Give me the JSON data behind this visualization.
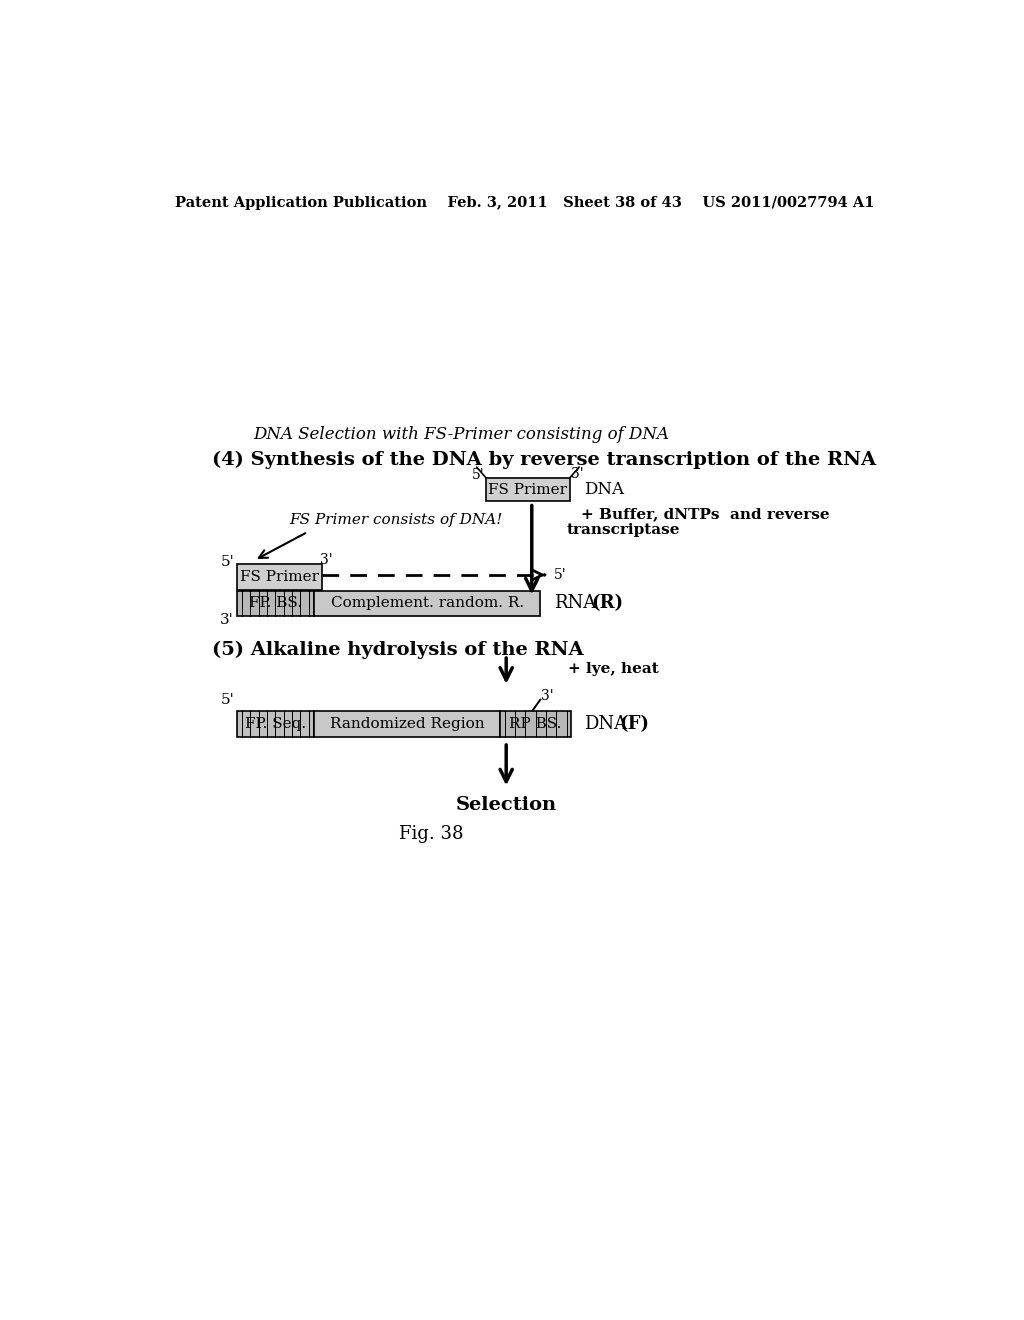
{
  "bg_color": "#ffffff",
  "header_text": "Patent Application Publication    Feb. 3, 2011   Sheet 38 of 43    US 2011/0027794 A1",
  "subtitle": "DNA Selection with FS-Primer consisting of DNA",
  "title4": "(4) Synthesis of the DNA by reverse transcription of the RNA",
  "title5": "(5) Alkaline hydrolysis of the RNA",
  "fig_label": "Fig. 38",
  "selection_label": "Selection",
  "dna_label": "DNA",
  "rna_label": "RNA",
  "fs_primer_label": "FS Primer",
  "fp_bs_label": "FP. BS.",
  "complement_label": "Complement. random. R.",
  "fp_seq_label": "FP. Seq.",
  "rand_region_label": "Randomized Region",
  "rp_bs_label": "RP BS.",
  "buffer_text1": "+ Buffer, dNTPs  and reverse",
  "buffer_text2": "transcriptase",
  "annotation_text": "FS Primer consists of DNA!",
  "lye_heat_text": "+ lye, heat"
}
